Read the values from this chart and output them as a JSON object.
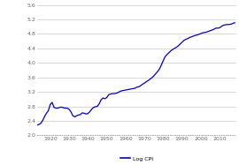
{
  "title": "",
  "xlabel": "",
  "ylabel": "",
  "xlim": [
    1913,
    2019
  ],
  "ylim": [
    2.0,
    5.6
  ],
  "yticks": [
    2.0,
    2.4,
    2.8,
    3.2,
    3.6,
    4.0,
    4.4,
    4.8,
    5.2,
    5.6
  ],
  "xticks": [
    1920,
    1930,
    1940,
    1950,
    1960,
    1970,
    1980,
    1990,
    2000,
    2010
  ],
  "line_color": "#0000bb",
  "line_width": 0.9,
  "legend_label": "Log CPI",
  "background_color": "#ffffff",
  "grid_color": "#c8c8c8",
  "tick_color": "#666666",
  "years": [
    1913,
    1914,
    1915,
    1916,
    1917,
    1918,
    1919,
    1920,
    1921,
    1922,
    1923,
    1924,
    1925,
    1926,
    1927,
    1928,
    1929,
    1930,
    1931,
    1932,
    1933,
    1934,
    1935,
    1936,
    1937,
    1938,
    1939,
    1940,
    1941,
    1942,
    1943,
    1944,
    1945,
    1946,
    1947,
    1948,
    1949,
    1950,
    1951,
    1952,
    1953,
    1954,
    1955,
    1956,
    1957,
    1958,
    1959,
    1960,
    1961,
    1962,
    1963,
    1964,
    1965,
    1966,
    1967,
    1968,
    1969,
    1970,
    1971,
    1972,
    1973,
    1974,
    1975,
    1976,
    1977,
    1978,
    1979,
    1980,
    1981,
    1982,
    1983,
    1984,
    1985,
    1986,
    1987,
    1988,
    1989,
    1990,
    1991,
    1992,
    1993,
    1994,
    1995,
    1996,
    1997,
    1998,
    1999,
    2000,
    2001,
    2002,
    2003,
    2004,
    2005,
    2006,
    2007,
    2008,
    2009,
    2010,
    2011,
    2012,
    2013,
    2014,
    2015,
    2016,
    2017,
    2018
  ],
  "log_cpi": [
    2.28,
    2.3,
    2.33,
    2.41,
    2.52,
    2.61,
    2.68,
    2.85,
    2.91,
    2.77,
    2.75,
    2.75,
    2.77,
    2.78,
    2.76,
    2.75,
    2.75,
    2.72,
    2.65,
    2.54,
    2.51,
    2.54,
    2.56,
    2.57,
    2.62,
    2.61,
    2.59,
    2.6,
    2.65,
    2.72,
    2.77,
    2.79,
    2.8,
    2.87,
    2.98,
    3.03,
    3.01,
    3.04,
    3.12,
    3.14,
    3.15,
    3.15,
    3.16,
    3.18,
    3.21,
    3.23,
    3.24,
    3.25,
    3.26,
    3.27,
    3.28,
    3.29,
    3.3,
    3.33,
    3.34,
    3.37,
    3.41,
    3.44,
    3.48,
    3.51,
    3.55,
    3.59,
    3.64,
    3.7,
    3.76,
    3.83,
    3.94,
    4.06,
    4.17,
    4.23,
    4.28,
    4.33,
    4.37,
    4.4,
    4.43,
    4.47,
    4.52,
    4.57,
    4.62,
    4.65,
    4.67,
    4.7,
    4.72,
    4.74,
    4.76,
    4.77,
    4.79,
    4.81,
    4.83,
    4.84,
    4.85,
    4.87,
    4.89,
    4.91,
    4.93,
    4.96,
    4.96,
    4.97,
    5.01,
    5.04,
    5.05,
    5.06,
    5.06,
    5.07,
    5.09,
    5.11
  ]
}
